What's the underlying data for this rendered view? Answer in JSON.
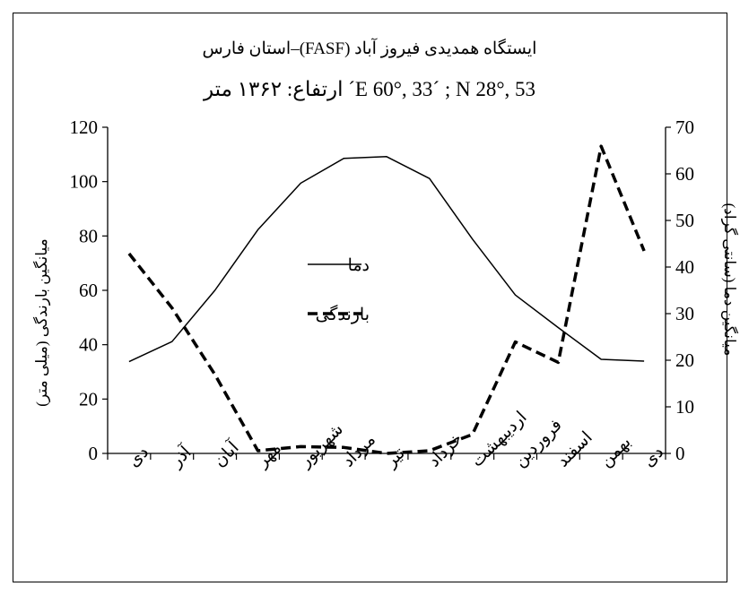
{
  "chart_data": {
    "type": "line",
    "title_line1": "ایستگاه همدیدی فیروز آباد (FASF)–استان فارس",
    "title_line2": "E 60°, 33´ ; N 28°, 53´ ارتفاع: ۱۳۶۲ متر",
    "ylabel_left": "میانگین بارندگی (میلی متر)",
    "ylabel_right": "میانگین دما (سانتی گراد)",
    "ylim_left": [
      0,
      120
    ],
    "ylim_right": [
      0,
      70
    ],
    "yticks_left": [
      "0",
      "20",
      "40",
      "60",
      "80",
      "100",
      "120"
    ],
    "yticks_right": [
      "0",
      "10",
      "20",
      "30",
      "40",
      "50",
      "60",
      "70"
    ],
    "categories": [
      "دی",
      "آذر",
      "آبان",
      "مهر",
      "شهریور",
      "مرداد",
      "تیر",
      "خرداد",
      "اردیبهشت",
      "فروردین",
      "اسفند",
      "بهمن",
      "دی"
    ],
    "grid": false,
    "legend_position": "center",
    "series": [
      {
        "name": "دما",
        "axis": "right",
        "style": "solid",
        "color": "#000000",
        "values": [
          19.7,
          24.0,
          35.0,
          48.0,
          58.0,
          63.3,
          63.7,
          59.0,
          46.0,
          34.0,
          27.0,
          20.2,
          19.8
        ]
      },
      {
        "name": "بارندگی",
        "axis": "left",
        "style": "dashed",
        "color": "#000000",
        "values": [
          73.5,
          53.5,
          29.0,
          1.0,
          2.5,
          2.2,
          0.0,
          1.0,
          7.0,
          41.0,
          33.5,
          113.0,
          74.5
        ]
      }
    ]
  }
}
